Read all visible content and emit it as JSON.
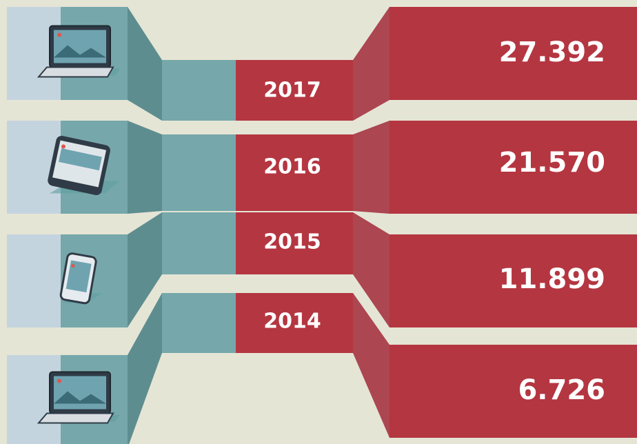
{
  "rows": [
    {
      "year": "2017",
      "value": "27.392"
    },
    {
      "year": "2016",
      "value": "21.570"
    },
    {
      "year": "2015",
      "value": "11.899"
    },
    {
      "year": "2014",
      "value": "6.726"
    }
  ]
}
